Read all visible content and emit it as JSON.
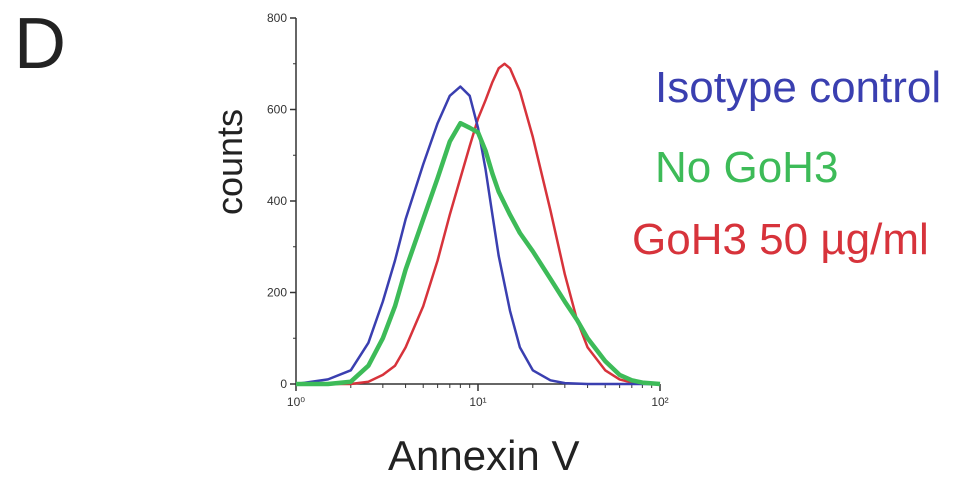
{
  "panel_label": "D",
  "colors": {
    "Isotype control": "#3a3fb0",
    "No GoH3": "#3dbb58",
    "GoH3 50 µg/ml": "#d7333b",
    "axis": "#333333"
  },
  "chart_data": {
    "type": "line",
    "title": "",
    "xlabel": "Annexin V",
    "ylabel": "counts",
    "x_scale": "log",
    "xlim": [
      1,
      100
    ],
    "ylim": [
      0,
      800
    ],
    "x_ticks": [
      1,
      10,
      100
    ],
    "x_tick_labels": [
      "10⁰",
      "10¹",
      "10²"
    ],
    "y_ticks": [
      0,
      200,
      400,
      600,
      800
    ],
    "y_tick_labels": [
      "0",
      "200",
      "400",
      "600",
      "800"
    ],
    "grid": false,
    "legend_position": "right",
    "series": [
      {
        "name": "Isotype control",
        "x": [
          1,
          1.5,
          2,
          2.5,
          3,
          3.5,
          4,
          5,
          6,
          7,
          8,
          9,
          10,
          11,
          12,
          13,
          15,
          17,
          20,
          25,
          30,
          40,
          100
        ],
        "y": [
          0,
          10,
          30,
          90,
          180,
          270,
          360,
          480,
          570,
          630,
          650,
          630,
          560,
          470,
          370,
          280,
          160,
          80,
          30,
          8,
          2,
          0,
          0
        ]
      },
      {
        "name": "No GoH3",
        "x": [
          1,
          1.5,
          2,
          2.5,
          3,
          3.5,
          4,
          5,
          6,
          7,
          8,
          9,
          10,
          11,
          12,
          13,
          15,
          17,
          20,
          25,
          30,
          35,
          40,
          50,
          60,
          70,
          80,
          100
        ],
        "y": [
          0,
          0,
          5,
          40,
          100,
          170,
          250,
          360,
          450,
          530,
          570,
          560,
          550,
          510,
          460,
          420,
          370,
          330,
          290,
          230,
          180,
          140,
          100,
          50,
          20,
          8,
          3,
          0
        ]
      },
      {
        "name": "GoH3 50 µg/ml",
        "x": [
          1,
          1.5,
          2,
          2.5,
          3,
          3.5,
          4,
          5,
          6,
          7,
          8,
          9,
          10,
          11,
          12,
          13,
          14,
          15,
          17,
          20,
          25,
          30,
          35,
          40,
          50,
          60,
          70,
          100
        ],
        "y": [
          0,
          0,
          0,
          5,
          20,
          40,
          80,
          170,
          270,
          370,
          450,
          520,
          580,
          620,
          660,
          690,
          700,
          690,
          640,
          540,
          380,
          240,
          140,
          80,
          30,
          10,
          3,
          0
        ]
      }
    ]
  }
}
